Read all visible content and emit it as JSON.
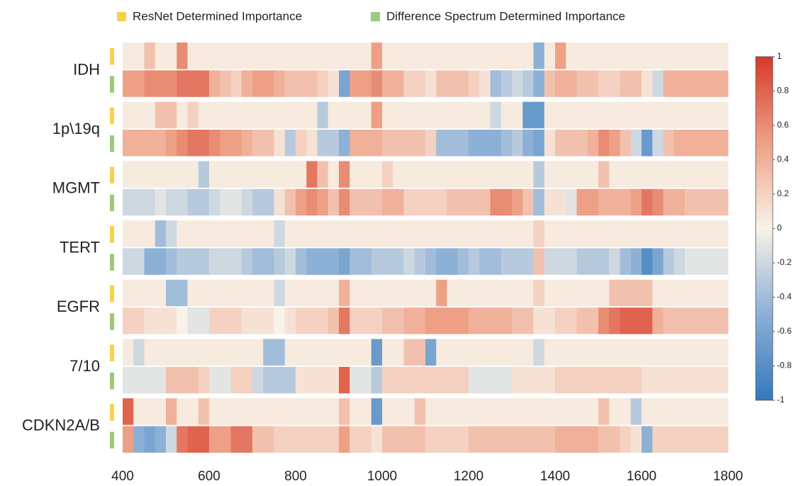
{
  "chart_data": {
    "type": "heatmap",
    "legend": [
      {
        "name": "ResNet Determined Importance",
        "color": "#f9cf4c"
      },
      {
        "name": "Difference Spectrum Determined Importance",
        "color": "#9cc97a"
      }
    ],
    "bins": [
      400,
      425,
      450,
      475,
      500,
      525,
      550,
      575,
      600,
      625,
      650,
      675,
      700,
      725,
      750,
      775,
      800,
      825,
      850,
      875,
      900,
      925,
      950,
      975,
      1000,
      1025,
      1050,
      1075,
      1100,
      1125,
      1150,
      1175,
      1200,
      1225,
      1250,
      1275,
      1300,
      1325,
      1350,
      1375,
      1400,
      1425,
      1450,
      1475,
      1500,
      1525,
      1550,
      1575,
      1600,
      1625,
      1650,
      1675,
      1700,
      1725,
      1750,
      1775,
      1800
    ],
    "xlim": [
      400,
      1800
    ],
    "xticks": [
      400,
      600,
      800,
      1000,
      1200,
      1400,
      1600,
      1800
    ],
    "colorbar": {
      "lim": [
        -1,
        1
      ],
      "ticks": [
        1,
        0.8,
        0.6,
        0.4,
        0.2,
        0,
        -0.2,
        -0.4,
        -0.6,
        -0.8,
        -1
      ]
    },
    "rows": [
      {
        "label": "IDH",
        "values": [
          [
            0.05,
            0.05,
            0.3,
            0.05,
            0.05,
            0.6,
            0.05,
            0.05,
            0.05,
            0.05,
            0.05,
            0.05,
            0.05,
            0.05,
            0.05,
            0.05,
            0.05,
            0.05,
            0.05,
            0.05,
            0.05,
            0.05,
            0.05,
            0.5,
            0.05,
            0.05,
            0.05,
            0.05,
            0.05,
            0.05,
            0.05,
            0.05,
            0.05,
            0.05,
            0.05,
            0.05,
            0.05,
            0.05,
            -0.5,
            0.05,
            0.5,
            0.05,
            0.05,
            0.05,
            0.05,
            0.05,
            0.05,
            0.05,
            0.05,
            0.05,
            0.05,
            0.05,
            0.05,
            0.05,
            0.05,
            0.05
          ],
          [
            0.5,
            0.5,
            0.6,
            0.6,
            0.6,
            0.7,
            0.7,
            0.7,
            0.4,
            0.3,
            0.2,
            0.4,
            0.5,
            0.5,
            0.4,
            0.3,
            0.3,
            0.3,
            0.2,
            0.1,
            -0.6,
            0.5,
            0.5,
            0.6,
            0.4,
            0.4,
            0.2,
            0.2,
            0.1,
            0.3,
            0.3,
            0.3,
            0.2,
            0.1,
            -0.4,
            -0.3,
            -0.2,
            -0.3,
            -0.5,
            0.3,
            0.4,
            0.4,
            0.3,
            0.3,
            0.2,
            0.2,
            0.3,
            0.3,
            0.1,
            -0.2,
            0.4,
            0.4,
            0.4,
            0.4,
            0.4,
            0.4
          ]
        ]
      },
      {
        "label": "1p\\19q",
        "values": [
          [
            0.05,
            0.05,
            0.05,
            0.3,
            0.3,
            0.05,
            0.2,
            0.05,
            0.05,
            0.05,
            0.05,
            0.05,
            0.05,
            0.05,
            0.05,
            0.05,
            0.05,
            0.05,
            -0.3,
            0.05,
            0.05,
            0.05,
            0.05,
            0.5,
            0.05,
            0.05,
            0.05,
            0.05,
            0.05,
            0.05,
            0.05,
            0.05,
            0.05,
            0.05,
            -0.2,
            0.05,
            0.05,
            -0.7,
            -0.7,
            0.05,
            0.05,
            0.05,
            0.05,
            0.05,
            0.05,
            0.05,
            0.05,
            0.05,
            0.05,
            0.05,
            0.05,
            0.05,
            0.05,
            0.05,
            0.05,
            0.05
          ],
          [
            0.4,
            0.4,
            0.4,
            0.4,
            0.5,
            0.6,
            0.7,
            0.7,
            0.6,
            0.5,
            0.5,
            0.4,
            0.3,
            0.3,
            0.1,
            -0.3,
            0.2,
            0.1,
            -0.3,
            -0.3,
            -0.5,
            0.4,
            0.4,
            0.4,
            0.3,
            0.3,
            0.3,
            0.3,
            0.2,
            -0.4,
            -0.4,
            -0.4,
            -0.5,
            -0.5,
            -0.5,
            -0.4,
            -0.3,
            -0.5,
            -0.6,
            0.1,
            0.3,
            0.3,
            0.3,
            0.4,
            0.6,
            0.5,
            0.3,
            -0.2,
            -0.7,
            -0.2,
            0.3,
            0.4,
            0.4,
            0.4,
            0.4,
            0.4
          ]
        ]
      },
      {
        "label": "MGMT",
        "values": [
          [
            0.05,
            0.05,
            0.05,
            0.05,
            0.05,
            0.05,
            0.05,
            -0.3,
            0.05,
            0.05,
            0.05,
            0.05,
            0.05,
            0.05,
            0.05,
            0.05,
            0.05,
            0.7,
            0.3,
            0.05,
            0.6,
            0.05,
            0.05,
            0.05,
            0.2,
            0.05,
            0.05,
            0.05,
            0.05,
            0.05,
            0.05,
            0.05,
            0.05,
            0.05,
            0.05,
            0.05,
            0.05,
            0.05,
            -0.3,
            0.05,
            0.05,
            0.05,
            0.05,
            0.05,
            0.3,
            0.05,
            0.05,
            0.05,
            0.05,
            0.05,
            0.05,
            0.05,
            0.05,
            0.05,
            0.05,
            0.05
          ],
          [
            -0.2,
            -0.2,
            -0.2,
            -0.1,
            -0.2,
            -0.2,
            -0.3,
            -0.3,
            -0.2,
            -0.1,
            -0.1,
            -0.2,
            -0.3,
            -0.3,
            0.1,
            0.3,
            0.5,
            0.6,
            0.5,
            0.3,
            0.6,
            0.3,
            0.3,
            0.3,
            0.4,
            0.4,
            0.2,
            0.2,
            0.2,
            0.2,
            0.3,
            0.3,
            0.3,
            0.3,
            0.6,
            0.6,
            0.5,
            0.3,
            -0.4,
            0.1,
            0.1,
            -0.1,
            0.5,
            0.5,
            0.4,
            0.4,
            0.4,
            0.5,
            0.7,
            0.6,
            0.4,
            0.4,
            0.3,
            0.3,
            0.3,
            0.3
          ]
        ]
      },
      {
        "label": "TERT",
        "values": [
          [
            0.05,
            0.05,
            0.05,
            -0.4,
            -0.2,
            0.05,
            0.05,
            0.05,
            0.05,
            0.05,
            0.05,
            0.05,
            0.05,
            0.05,
            -0.2,
            0.05,
            0.05,
            0.05,
            0.05,
            0.05,
            0.05,
            0.05,
            0.05,
            0.05,
            0.05,
            0.05,
            0.05,
            0.05,
            0.05,
            0.05,
            0.05,
            0.05,
            0.05,
            0.05,
            0.05,
            0.05,
            0.05,
            0.05,
            0.2,
            0.05,
            0.05,
            0.05,
            0.05,
            0.05,
            0.05,
            0.05,
            0.05,
            0.05,
            0.05,
            0.05,
            0.05,
            0.05,
            0.05,
            0.05,
            0.05,
            0.05
          ],
          [
            -0.2,
            -0.2,
            -0.5,
            -0.5,
            -0.4,
            -0.3,
            -0.3,
            -0.3,
            -0.2,
            -0.2,
            -0.2,
            -0.3,
            -0.4,
            -0.4,
            -0.3,
            -0.2,
            -0.4,
            -0.5,
            -0.5,
            -0.5,
            -0.6,
            -0.4,
            -0.4,
            -0.3,
            -0.3,
            -0.3,
            -0.2,
            -0.3,
            -0.4,
            -0.5,
            -0.5,
            -0.4,
            -0.3,
            -0.4,
            -0.4,
            -0.3,
            -0.3,
            -0.3,
            0.3,
            -0.2,
            -0.2,
            -0.2,
            -0.3,
            -0.3,
            -0.3,
            -0.2,
            -0.4,
            -0.5,
            -0.8,
            -0.6,
            -0.3,
            -0.2,
            -0.1,
            -0.1,
            -0.1,
            -0.1
          ]
        ]
      },
      {
        "label": "EGFR",
        "values": [
          [
            0.05,
            0.05,
            0.05,
            0.05,
            -0.4,
            -0.4,
            0.05,
            0.05,
            0.05,
            0.05,
            0.05,
            0.05,
            0.05,
            0.05,
            -0.2,
            0.05,
            0.05,
            0.05,
            0.05,
            0.05,
            0.4,
            0.05,
            0.05,
            0.05,
            0.05,
            0.05,
            0.05,
            0.05,
            0.05,
            0.5,
            0.05,
            0.05,
            0.05,
            0.05,
            0.05,
            0.05,
            0.05,
            0.05,
            0.2,
            0.05,
            0.05,
            0.05,
            0.05,
            0.05,
            0.05,
            0.3,
            0.3,
            0.3,
            0.3,
            0.05,
            0.05,
            0.05,
            0.05,
            0.05,
            0.05,
            0.05
          ],
          [
            0.2,
            0.2,
            0.1,
            0.1,
            0.1,
            0,
            -0.1,
            -0.1,
            0.2,
            0.2,
            0.2,
            0.1,
            0.1,
            0.1,
            0,
            0.1,
            0.2,
            0.2,
            0.2,
            0.3,
            0.7,
            0.2,
            0.2,
            0.2,
            0.3,
            0.3,
            0.4,
            0.4,
            0.5,
            0.5,
            0.5,
            0.5,
            0.4,
            0.4,
            0.4,
            0.4,
            0.3,
            0.3,
            0.1,
            0.1,
            0.2,
            0.2,
            0.3,
            0.3,
            0.6,
            0.7,
            0.8,
            0.8,
            0.8,
            0.4,
            0.3,
            0.3,
            0.3,
            0.3,
            0.3,
            0.3
          ]
        ]
      },
      {
        "label": "7/10",
        "values": [
          [
            0.05,
            -0.2,
            0.05,
            0.05,
            0.05,
            0.05,
            0.05,
            0.05,
            0.05,
            0.05,
            0.05,
            0.05,
            0.05,
            -0.4,
            -0.4,
            0.05,
            0.05,
            0.05,
            0.05,
            0.05,
            0.05,
            0.05,
            0.05,
            -0.7,
            0.05,
            0.05,
            0.3,
            0.3,
            -0.6,
            0.05,
            0.05,
            0.05,
            0.05,
            0.05,
            0.05,
            0.05,
            0.05,
            0.05,
            -0.2,
            0.05,
            0.05,
            0.05,
            0.05,
            0.05,
            0.05,
            0.05,
            0.05,
            0.05,
            0.05,
            0.05,
            0.05,
            0.05,
            0.05,
            0.05,
            0.05,
            0.05
          ],
          [
            -0.1,
            -0.1,
            -0.1,
            -0.1,
            0.3,
            0.3,
            0.3,
            0.2,
            -0.1,
            -0.1,
            0.2,
            0.2,
            -0.2,
            -0.3,
            -0.3,
            -0.3,
            0.1,
            0.1,
            0.1,
            0.1,
            0.8,
            -0.1,
            -0.1,
            -0.3,
            0.2,
            0.2,
            0.2,
            0.2,
            0.2,
            0.2,
            0.2,
            0.2,
            -0.1,
            -0.1,
            -0.1,
            -0.1,
            0.1,
            0.1,
            0.1,
            0.1,
            0.2,
            0.2,
            0.2,
            0.2,
            0.2,
            0.2,
            0.2,
            0.2,
            0.1,
            0.1,
            0.1,
            0.1,
            0.1,
            0.1,
            0.1,
            0.1
          ]
        ]
      },
      {
        "label": "CDKN2A/B",
        "values": [
          [
            0.8,
            0.05,
            0.05,
            0.05,
            0.4,
            0.05,
            0.05,
            0.3,
            0.05,
            0.05,
            0.05,
            0.05,
            0.05,
            0.05,
            0.05,
            0.05,
            0.05,
            0.05,
            0.05,
            0.05,
            0.3,
            0.05,
            0.05,
            -0.7,
            0.05,
            0.05,
            0.05,
            0.3,
            0.05,
            0.05,
            0.05,
            0.05,
            0.05,
            0.05,
            0.05,
            0.05,
            0.05,
            0.05,
            0.05,
            0.05,
            0.05,
            0.05,
            0.05,
            0.05,
            0.3,
            0.05,
            0.05,
            -0.3,
            0.05,
            0.05,
            0.05,
            0.05,
            0.05,
            0.05,
            0.05,
            0.05
          ],
          [
            0.5,
            -0.5,
            -0.6,
            -0.5,
            -0.2,
            0.7,
            0.8,
            0.8,
            0.5,
            0.5,
            0.7,
            0.7,
            0.3,
            0.3,
            0.2,
            0.2,
            0.2,
            0.2,
            0.2,
            0.2,
            0.5,
            0.2,
            0.2,
            0.1,
            0.3,
            0.3,
            0.3,
            0.3,
            0.2,
            0.2,
            0.2,
            0.2,
            0.3,
            0.3,
            0.3,
            0.3,
            0.3,
            0.3,
            0.3,
            0.3,
            0.4,
            0.4,
            0.4,
            0.4,
            0.3,
            0.3,
            0.2,
            0.1,
            -0.5,
            0.2,
            0.2,
            0.2,
            0.2,
            0.2,
            0.2,
            0.2
          ]
        ]
      }
    ]
  }
}
